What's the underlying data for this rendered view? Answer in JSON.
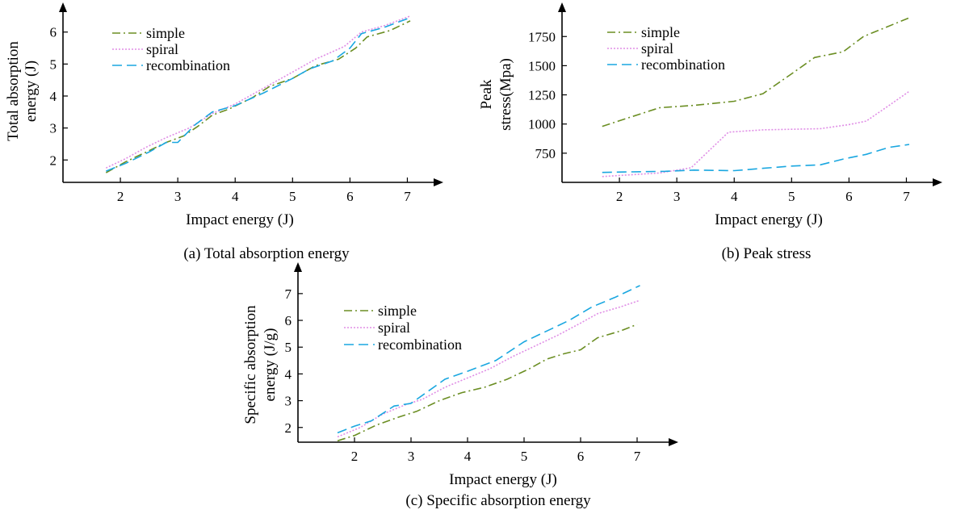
{
  "colors": {
    "simple": "#6b8e23",
    "spiral": "#e08ee6",
    "recombination": "#1aa7e0",
    "axis": "#000000"
  },
  "chart_data": [
    {
      "type": "line",
      "caption": "(a) Total absorption energy",
      "xlabel": "Impact energy (J)",
      "ylabel_lines": [
        "Total absorption",
        "energy (J)"
      ],
      "xlim": [
        1,
        7.5
      ],
      "ylim": [
        1.3,
        6.7
      ],
      "xticks": [
        2,
        3,
        4,
        5,
        6,
        7
      ],
      "yticks": [
        2,
        3,
        4,
        5,
        6
      ],
      "legend": [
        "simple",
        "spiral",
        "recombination"
      ],
      "series": [
        {
          "name": "simple",
          "x": [
            1.75,
            2.1,
            2.45,
            2.8,
            3.1,
            3.35,
            3.6,
            3.9,
            4.3,
            4.6,
            5.0,
            5.4,
            5.8,
            6.1,
            6.3,
            6.7,
            7.05
          ],
          "y": [
            1.6,
            1.95,
            2.25,
            2.55,
            2.75,
            3.05,
            3.4,
            3.6,
            3.95,
            4.3,
            4.55,
            4.95,
            5.15,
            5.5,
            5.85,
            6.05,
            6.35
          ]
        },
        {
          "name": "spiral",
          "x": [
            1.75,
            2.1,
            2.45,
            2.8,
            3.2,
            3.6,
            4.0,
            4.5,
            5.0,
            5.4,
            5.9,
            6.2,
            6.6,
            7.05
          ],
          "y": [
            1.75,
            2.05,
            2.4,
            2.7,
            3.0,
            3.45,
            3.75,
            4.25,
            4.75,
            5.15,
            5.55,
            6.0,
            6.2,
            6.5
          ]
        },
        {
          "name": "recombination",
          "x": [
            1.75,
            2.1,
            2.5,
            2.8,
            3.0,
            3.3,
            3.6,
            4.0,
            4.5,
            5.0,
            5.3,
            5.7,
            6.0,
            6.2,
            6.6,
            7.05
          ],
          "y": [
            1.65,
            1.9,
            2.25,
            2.55,
            2.55,
            3.1,
            3.5,
            3.7,
            4.1,
            4.55,
            4.85,
            5.1,
            5.5,
            5.95,
            6.15,
            6.45
          ]
        }
      ]
    },
    {
      "type": "line",
      "caption": "(b) Peak stress",
      "xlabel": "Impact energy (J)",
      "ylabel_lines": [
        "Peak",
        "stress(Mpa)"
      ],
      "xlim": [
        1,
        7.5
      ],
      "ylim": [
        500,
        1980
      ],
      "xticks": [
        2,
        3,
        4,
        5,
        6,
        7
      ],
      "yticks": [
        750,
        1000,
        1250,
        1500,
        1750
      ],
      "legend": [
        "simple",
        "spiral",
        "recombination"
      ],
      "series": [
        {
          "name": "simple",
          "x": [
            1.7,
            2.2,
            2.7,
            3.3,
            4.0,
            4.5,
            5.0,
            5.4,
            5.9,
            6.25,
            6.6,
            7.05
          ],
          "y": [
            980,
            1060,
            1140,
            1160,
            1195,
            1260,
            1430,
            1570,
            1620,
            1750,
            1820,
            1910
          ]
        },
        {
          "name": "spiral",
          "x": [
            1.7,
            2.2,
            2.7,
            3.25,
            3.9,
            4.5,
            5.0,
            5.5,
            6.0,
            6.3,
            6.7,
            7.05
          ],
          "y": [
            550,
            565,
            580,
            625,
            930,
            950,
            955,
            960,
            995,
            1025,
            1160,
            1280
          ]
        },
        {
          "name": "recombination",
          "x": [
            1.7,
            2.2,
            2.8,
            3.3,
            4.0,
            4.5,
            5.0,
            5.5,
            5.9,
            6.3,
            6.7,
            7.05
          ],
          "y": [
            585,
            590,
            595,
            605,
            600,
            620,
            640,
            650,
            700,
            740,
            800,
            825
          ]
        }
      ]
    },
    {
      "type": "line",
      "caption": "(c) Specific absorption energy",
      "xlabel": "Impact energy (J)",
      "ylabel_lines": [
        "Specific absorption",
        "energy (J/g)"
      ],
      "xlim": [
        1,
        7.6
      ],
      "ylim": [
        1.45,
        7.9
      ],
      "xticks": [
        2,
        3,
        4,
        5,
        6,
        7
      ],
      "yticks": [
        2,
        3,
        4,
        5,
        6,
        7
      ],
      "legend": [
        "simple",
        "spiral",
        "recombination"
      ],
      "series": [
        {
          "name": "simple",
          "x": [
            1.7,
            2.0,
            2.4,
            2.8,
            3.1,
            3.5,
            3.9,
            4.3,
            4.7,
            5.1,
            5.4,
            5.7,
            6.0,
            6.3,
            6.7,
            7.0
          ],
          "y": [
            1.5,
            1.7,
            2.1,
            2.4,
            2.6,
            3.0,
            3.3,
            3.5,
            3.8,
            4.2,
            4.55,
            4.75,
            4.9,
            5.35,
            5.6,
            5.85
          ]
        },
        {
          "name": "spiral",
          "x": [
            1.7,
            2.1,
            2.5,
            2.9,
            3.2,
            3.6,
            4.0,
            4.4,
            4.8,
            5.2,
            5.6,
            6.0,
            6.3,
            6.7,
            7.05
          ],
          "y": [
            1.65,
            2.0,
            2.5,
            2.85,
            3.05,
            3.5,
            3.85,
            4.2,
            4.65,
            5.05,
            5.45,
            5.9,
            6.25,
            6.5,
            6.75
          ]
        },
        {
          "name": "recombination",
          "x": [
            1.7,
            2.0,
            2.3,
            2.7,
            3.0,
            3.3,
            3.6,
            4.0,
            4.5,
            5.0,
            5.4,
            5.8,
            6.2,
            6.6,
            7.05
          ],
          "y": [
            1.8,
            2.05,
            2.25,
            2.8,
            2.9,
            3.35,
            3.8,
            4.1,
            4.5,
            5.2,
            5.6,
            6.0,
            6.5,
            6.85,
            7.3
          ]
        }
      ]
    }
  ]
}
